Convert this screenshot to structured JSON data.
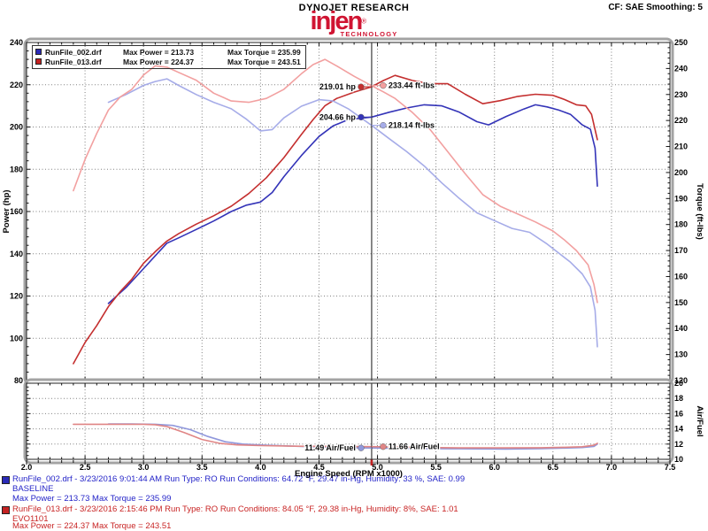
{
  "header": {
    "title": "DYNOJET RESEARCH",
    "settings": "CF: SAE  Smoothing: 5",
    "logo_text": "injen",
    "logo_reg": "®",
    "logo_sub": "TECHNOLOGY",
    "logo_color": "#d01432"
  },
  "legend": {
    "rows": [
      {
        "file": "RunFile_002.drf",
        "power": "Max Power = 213.73",
        "torque": "Max Torque = 235.99",
        "color": "#2a2ab8"
      },
      {
        "file": "RunFile_013.drf",
        "power": "Max Power = 224.37",
        "torque": "Max Torque = 243.51",
        "color": "#c42222"
      }
    ]
  },
  "footer": {
    "runs": [
      {
        "line1": "RunFile_002.drf - 3/23/2016 9:01:44 AM  Run Type: RO  Run Conditions: 64.72 °F, 29.47 in-Hg,  Humidity:  33 %, SAE: 0.99",
        "line2": "BASELINE",
        "line3": "Max Power = 213.73  Max Torque = 235.99",
        "color": "#2424c8"
      },
      {
        "line1": "RunFile_013.drf - 3/23/2016 2:15:46 PM  Run Type: RO  Run Conditions: 84.05 °F, 29.38 in-Hg,  Humidity:  8%, SAE: 1.01",
        "line2": "EVO1101",
        "line3": "Max Power = 224.37  Max Torque = 243.51",
        "color": "#c82424"
      }
    ]
  },
  "chart_data": {
    "type": "line",
    "x": {
      "label": "Engine Speed (RPM x1000)",
      "range": [
        2.0,
        7.5
      ],
      "major": 0.5,
      "minor": 0.1
    },
    "grid": "dotted",
    "panels": [
      {
        "id": "main",
        "left_axis": {
          "label": "Power (hp)",
          "range": [
            80,
            240
          ],
          "major": 20,
          "minor": 4
        },
        "right_axis": {
          "label": "Torque (ft-lbs)",
          "range": [
            120,
            250
          ],
          "major": 10,
          "minor": 2
        },
        "series": [
          {
            "name": "RunFile_002 Power (hp)",
            "axis": "left_axis",
            "color": "#3434b8",
            "points": [
              [
                2.7,
                116.5
              ],
              [
                2.85,
                124
              ],
              [
                3.0,
                133
              ],
              [
                3.1,
                139
              ],
              [
                3.2,
                145
              ],
              [
                3.3,
                147.5
              ],
              [
                3.45,
                151.5
              ],
              [
                3.6,
                155.5
              ],
              [
                3.75,
                160
              ],
              [
                3.88,
                163
              ],
              [
                4.0,
                164.5
              ],
              [
                4.1,
                169
              ],
              [
                4.2,
                176.5
              ],
              [
                4.35,
                186.5
              ],
              [
                4.5,
                195.5
              ],
              [
                4.62,
                200.5
              ],
              [
                4.75,
                203.5
              ],
              [
                4.95,
                204.7
              ],
              [
                5.1,
                207
              ],
              [
                5.25,
                209
              ],
              [
                5.4,
                210.5
              ],
              [
                5.55,
                210
              ],
              [
                5.7,
                207
              ],
              [
                5.85,
                202.5
              ],
              [
                5.95,
                201
              ],
              [
                6.1,
                205
              ],
              [
                6.25,
                208.5
              ],
              [
                6.35,
                210.5
              ],
              [
                6.45,
                209.5
              ],
              [
                6.55,
                208
              ],
              [
                6.65,
                206
              ],
              [
                6.75,
                201
              ],
              [
                6.82,
                199
              ],
              [
                6.86,
                190
              ],
              [
                6.88,
                172
              ]
            ]
          },
          {
            "name": "RunFile_013 Power (hp)",
            "axis": "left_axis",
            "color": "#c42f2f",
            "points": [
              [
                2.4,
                88
              ],
              [
                2.5,
                98
              ],
              [
                2.6,
                106
              ],
              [
                2.7,
                115
              ],
              [
                2.8,
                122
              ],
              [
                2.9,
                128
              ],
              [
                3.0,
                135.5
              ],
              [
                3.1,
                141
              ],
              [
                3.2,
                146
              ],
              [
                3.3,
                149.5
              ],
              [
                3.45,
                154
              ],
              [
                3.6,
                158
              ],
              [
                3.75,
                162.5
              ],
              [
                3.9,
                168.5
              ],
              [
                4.05,
                176
              ],
              [
                4.2,
                185.5
              ],
              [
                4.35,
                196.5
              ],
              [
                4.45,
                203.5
              ],
              [
                4.55,
                210
              ],
              [
                4.65,
                213.5
              ],
              [
                4.8,
                216.5
              ],
              [
                4.95,
                219
              ],
              [
                5.05,
                222
              ],
              [
                5.15,
                224.4
              ],
              [
                5.3,
                222
              ],
              [
                5.45,
                220.5
              ],
              [
                5.6,
                220.5
              ],
              [
                5.75,
                215.5
              ],
              [
                5.9,
                211
              ],
              [
                6.05,
                212.5
              ],
              [
                6.2,
                214.5
              ],
              [
                6.35,
                215.5
              ],
              [
                6.5,
                215
              ],
              [
                6.6,
                213
              ],
              [
                6.7,
                210.5
              ],
              [
                6.78,
                210
              ],
              [
                6.83,
                206
              ],
              [
                6.88,
                194
              ]
            ]
          },
          {
            "name": "RunFile_002 Torque (ft-lbs)",
            "axis": "right_axis",
            "color": "#a6ace8",
            "points": [
              [
                2.7,
                227
              ],
              [
                2.85,
                230
              ],
              [
                3.0,
                233.5
              ],
              [
                3.1,
                235
              ],
              [
                3.2,
                236
              ],
              [
                3.3,
                233.5
              ],
              [
                3.45,
                230
              ],
              [
                3.6,
                227
              ],
              [
                3.75,
                224.5
              ],
              [
                3.88,
                220.5
              ],
              [
                4.0,
                216
              ],
              [
                4.1,
                216.5
              ],
              [
                4.2,
                221
              ],
              [
                4.35,
                225.5
              ],
              [
                4.5,
                228
              ],
              [
                4.62,
                227.5
              ],
              [
                4.75,
                224.5
              ],
              [
                4.95,
                218.1
              ],
              [
                5.1,
                213
              ],
              [
                5.25,
                208
              ],
              [
                5.4,
                202.5
              ],
              [
                5.55,
                196
              ],
              [
                5.7,
                190
              ],
              [
                5.85,
                184.5
              ],
              [
                6.0,
                181.5
              ],
              [
                6.15,
                178.5
              ],
              [
                6.3,
                177
              ],
              [
                6.45,
                172.5
              ],
              [
                6.55,
                169
              ],
              [
                6.65,
                165.5
              ],
              [
                6.75,
                161
              ],
              [
                6.82,
                156
              ],
              [
                6.86,
                147
              ],
              [
                6.88,
                133
              ]
            ]
          },
          {
            "name": "RunFile_013 Torque (ft-lbs)",
            "axis": "right_axis",
            "color": "#f2a0a0",
            "points": [
              [
                2.4,
                193
              ],
              [
                2.5,
                205
              ],
              [
                2.6,
                215
              ],
              [
                2.7,
                224
              ],
              [
                2.8,
                229
              ],
              [
                2.9,
                232
              ],
              [
                3.0,
                237.5
              ],
              [
                3.1,
                241
              ],
              [
                3.2,
                240.5
              ],
              [
                3.3,
                238.5
              ],
              [
                3.45,
                235.5
              ],
              [
                3.6,
                230.5
              ],
              [
                3.75,
                227.5
              ],
              [
                3.9,
                227
              ],
              [
                4.05,
                228.5
              ],
              [
                4.2,
                232
              ],
              [
                4.35,
                238
              ],
              [
                4.45,
                241.5
              ],
              [
                4.55,
                243.5
              ],
              [
                4.65,
                241
              ],
              [
                4.8,
                237
              ],
              [
                4.95,
                233.4
              ],
              [
                5.05,
                231
              ],
              [
                5.15,
                228.5
              ],
              [
                5.3,
                223
              ],
              [
                5.45,
                216.5
              ],
              [
                5.6,
                208
              ],
              [
                5.75,
                199.5
              ],
              [
                5.9,
                191.5
              ],
              [
                6.05,
                187
              ],
              [
                6.2,
                184
              ],
              [
                6.35,
                181
              ],
              [
                6.5,
                177.5
              ],
              [
                6.6,
                174
              ],
              [
                6.7,
                170
              ],
              [
                6.8,
                164.5
              ],
              [
                6.85,
                157
              ],
              [
                6.88,
                150
              ]
            ]
          }
        ]
      },
      {
        "id": "airfuel",
        "right_axis": {
          "label": "Air/Fuel",
          "range": [
            10,
            20
          ],
          "major": 2,
          "minor": 0.5
        },
        "series": [
          {
            "name": "RunFile_002 Air/Fuel",
            "axis": "right_axis",
            "color": "#9098dc",
            "points": [
              [
                2.7,
                14.65
              ],
              [
                2.9,
                14.65
              ],
              [
                3.1,
                14.6
              ],
              [
                3.25,
                14.45
              ],
              [
                3.4,
                13.9
              ],
              [
                3.55,
                13.0
              ],
              [
                3.7,
                12.3
              ],
              [
                3.85,
                12.0
              ],
              [
                4.05,
                11.85
              ],
              [
                4.35,
                11.7
              ],
              [
                4.65,
                11.55
              ],
              [
                4.95,
                11.49
              ],
              [
                5.3,
                11.42
              ],
              [
                5.7,
                11.38
              ],
              [
                6.1,
                11.35
              ],
              [
                6.4,
                11.4
              ],
              [
                6.6,
                11.48
              ],
              [
                6.75,
                11.55
              ],
              [
                6.85,
                11.7
              ],
              [
                6.88,
                12.0
              ]
            ]
          },
          {
            "name": "RunFile_013 Air/Fuel",
            "axis": "right_axis",
            "color": "#e08585",
            "points": [
              [
                2.4,
                14.6
              ],
              [
                2.7,
                14.6
              ],
              [
                3.0,
                14.6
              ],
              [
                3.1,
                14.55
              ],
              [
                3.2,
                14.3
              ],
              [
                3.35,
                13.5
              ],
              [
                3.5,
                12.6
              ],
              [
                3.65,
                12.1
              ],
              [
                3.8,
                11.9
              ],
              [
                4.0,
                11.8
              ],
              [
                4.3,
                11.72
              ],
              [
                4.6,
                11.7
              ],
              [
                4.95,
                11.66
              ],
              [
                5.3,
                11.58
              ],
              [
                5.7,
                11.5
              ],
              [
                6.1,
                11.5
              ],
              [
                6.4,
                11.52
              ],
              [
                6.6,
                11.58
              ],
              [
                6.75,
                11.65
              ],
              [
                6.85,
                11.85
              ],
              [
                6.88,
                12.1
              ]
            ]
          }
        ]
      }
    ],
    "cursor": {
      "rpm": 4.95,
      "color": "#3a3a3a",
      "readouts": [
        {
          "panel": "main",
          "axis": "left_axis",
          "value": 219.01,
          "label": "219.01 hp",
          "dot_color": "#c42f2f",
          "side": "left"
        },
        {
          "panel": "main",
          "axis": "right_axis",
          "value": 233.44,
          "label": "233.44 ft-lbs",
          "dot_color": "#f2a0a0",
          "side": "right"
        },
        {
          "panel": "main",
          "axis": "left_axis",
          "value": 204.66,
          "label": "204.66 hp",
          "dot_color": "#3434b8",
          "side": "left"
        },
        {
          "panel": "main",
          "axis": "right_axis",
          "value": 218.14,
          "label": "218.14 ft-lbs",
          "dot_color": "#a6ace8",
          "side": "right"
        },
        {
          "panel": "airfuel",
          "axis": "right_axis",
          "value": 11.49,
          "label": "11.49 Air/Fuel",
          "dot_color": "#9098dc",
          "side": "left"
        },
        {
          "panel": "airfuel",
          "axis": "right_axis",
          "value": 11.66,
          "label": "11.66 Air/Fuel",
          "dot_color": "#e08585",
          "side": "right"
        }
      ]
    }
  }
}
